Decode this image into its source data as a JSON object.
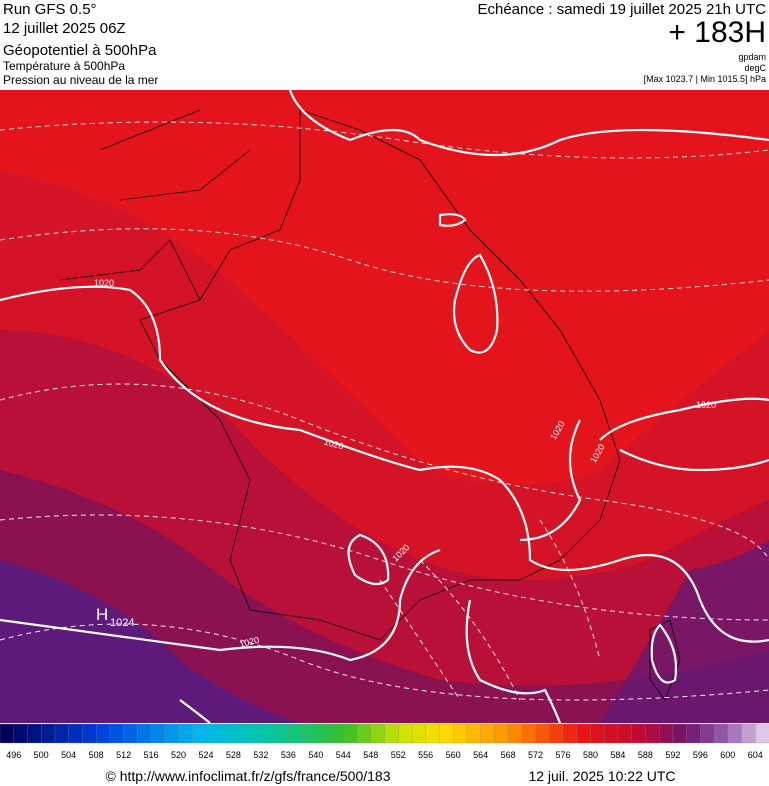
{
  "header": {
    "run": "Run GFS 0.5°",
    "date": "12 juillet 2025 06Z",
    "param1": "Géopotentiel à 500hPa",
    "param2": "Température à 500hPa",
    "param3": "Pression au niveau de la mer",
    "echeance": "Echéance : samedi 19 juillet 2025 21h UTC",
    "offset": "+ 183H",
    "unit1": "gpdam",
    "unit2": "degC",
    "range": "[Max 1023.7 | Min 1015.5] hPa"
  },
  "map": {
    "labels": [
      "1020",
      "1020",
      "1020",
      "1020",
      "1020",
      "1020",
      "1020",
      "H",
      "1024"
    ]
  },
  "colorbar": {
    "labels": [
      496,
      500,
      504,
      508,
      512,
      516,
      520,
      524,
      528,
      532,
      536,
      540,
      544,
      548,
      552,
      556,
      560,
      564,
      568,
      572,
      576,
      580,
      584,
      588,
      592,
      596,
      600,
      604
    ]
  },
  "footer": {
    "source": "© http://www.infoclimat.fr/z/gfs/france/500/183",
    "timestamp": "12 juil. 2025 10:22 UTC"
  }
}
